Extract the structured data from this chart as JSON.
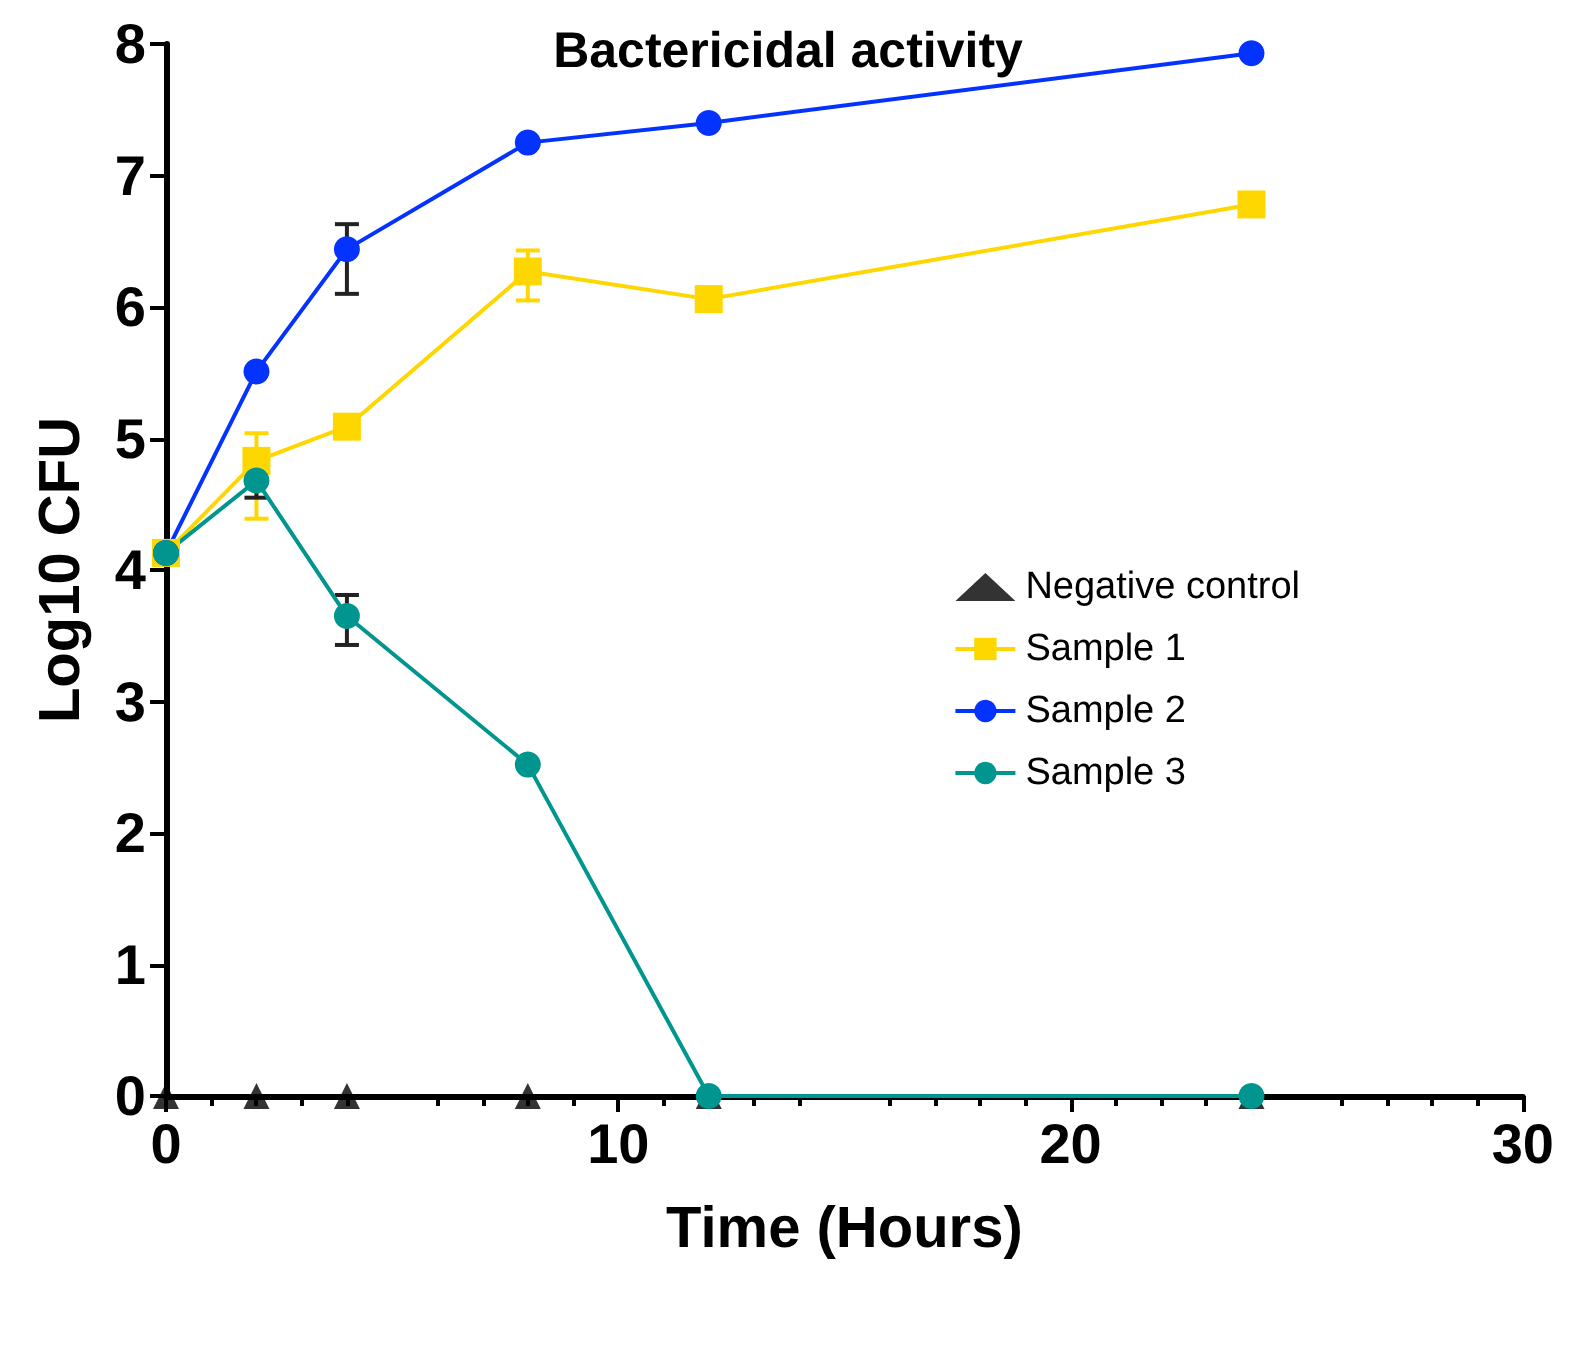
{
  "chart_data": {
    "type": "line",
    "title": "Bactericidal activity",
    "xlabel": "Time (Hours)",
    "ylabel": "Log10 CFU",
    "x": [
      0,
      2,
      4,
      8,
      12,
      24
    ],
    "series": [
      {
        "name": "Negative control",
        "type": "scatter",
        "color": "#000000",
        "marker": "triangle",
        "values": [
          0,
          0,
          0,
          0,
          0,
          0
        ]
      },
      {
        "name": "Sample 1",
        "color": "#ffd700",
        "marker": "square",
        "values": [
          4.13,
          4.83,
          5.09,
          6.27,
          6.06,
          6.78
        ],
        "errors": [
          null,
          [
            4.39,
            5.04
          ],
          null,
          [
            6.05,
            6.43
          ],
          null,
          null
        ]
      },
      {
        "name": "Sample 2",
        "color": "#0433ff",
        "marker": "circle",
        "values": [
          4.13,
          5.51,
          6.44,
          7.25,
          7.4,
          7.93
        ],
        "errors": [
          null,
          null,
          [
            6.1,
            6.63
          ],
          null,
          null,
          null
        ]
      },
      {
        "name": "Sample 3",
        "color": "#00968f",
        "marker": "circle",
        "values": [
          4.13,
          4.68,
          3.65,
          2.52,
          0,
          0
        ],
        "errors": [
          null,
          [
            4.55,
            4.8
          ],
          [
            3.43,
            3.81
          ],
          null,
          null,
          null
        ]
      }
    ],
    "xlim": [
      0,
      30
    ],
    "xticks": [
      0,
      10,
      20,
      30
    ],
    "ylim": [
      0,
      8
    ],
    "yticks": [
      0,
      1,
      2,
      3,
      4,
      5,
      6,
      7,
      8
    ],
    "grid": false,
    "legend": "right",
    "line_style": "solid"
  }
}
